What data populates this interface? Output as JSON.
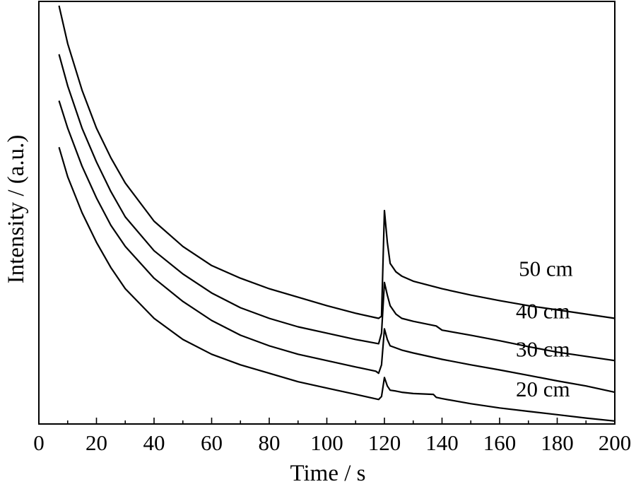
{
  "chart_data": {
    "type": "line",
    "xlabel": "Time / s",
    "ylabel": "Intensity / (a.u.)",
    "xlim": [
      0,
      200
    ],
    "ylim": [
      0,
      1
    ],
    "x_ticks": [
      0,
      20,
      40,
      60,
      80,
      100,
      120,
      140,
      160,
      180,
      200
    ],
    "y_ticks_shown": false,
    "grid": false,
    "series": [
      {
        "name": "50 cm",
        "points": [
          [
            7,
            0.99
          ],
          [
            10,
            0.9
          ],
          [
            15,
            0.79
          ],
          [
            20,
            0.7
          ],
          [
            25,
            0.63
          ],
          [
            30,
            0.57
          ],
          [
            40,
            0.48
          ],
          [
            50,
            0.42
          ],
          [
            60,
            0.375
          ],
          [
            70,
            0.345
          ],
          [
            80,
            0.32
          ],
          [
            90,
            0.3
          ],
          [
            100,
            0.28
          ],
          [
            110,
            0.262
          ],
          [
            118,
            0.25
          ],
          [
            119,
            0.255
          ],
          [
            120,
            0.505
          ],
          [
            121,
            0.43
          ],
          [
            122,
            0.38
          ],
          [
            124,
            0.36
          ],
          [
            126,
            0.35
          ],
          [
            130,
            0.338
          ],
          [
            140,
            0.32
          ],
          [
            150,
            0.305
          ],
          [
            160,
            0.292
          ],
          [
            170,
            0.28
          ],
          [
            180,
            0.27
          ],
          [
            190,
            0.26
          ],
          [
            200,
            0.25
          ]
        ]
      },
      {
        "name": "40 cm",
        "points": [
          [
            7,
            0.875
          ],
          [
            10,
            0.8
          ],
          [
            15,
            0.7
          ],
          [
            20,
            0.62
          ],
          [
            25,
            0.55
          ],
          [
            30,
            0.49
          ],
          [
            40,
            0.41
          ],
          [
            50,
            0.355
          ],
          [
            60,
            0.31
          ],
          [
            70,
            0.275
          ],
          [
            80,
            0.25
          ],
          [
            90,
            0.23
          ],
          [
            100,
            0.215
          ],
          [
            110,
            0.2
          ],
          [
            118,
            0.19
          ],
          [
            119,
            0.215
          ],
          [
            120,
            0.335
          ],
          [
            121,
            0.305
          ],
          [
            122,
            0.28
          ],
          [
            124,
            0.26
          ],
          [
            126,
            0.25
          ],
          [
            130,
            0.243
          ],
          [
            138,
            0.232
          ],
          [
            140,
            0.222
          ],
          [
            150,
            0.21
          ],
          [
            160,
            0.197
          ],
          [
            170,
            0.183
          ],
          [
            180,
            0.17
          ],
          [
            190,
            0.16
          ],
          [
            200,
            0.15
          ]
        ]
      },
      {
        "name": "30 cm",
        "points": [
          [
            7,
            0.765
          ],
          [
            10,
            0.7
          ],
          [
            15,
            0.61
          ],
          [
            20,
            0.535
          ],
          [
            25,
            0.47
          ],
          [
            30,
            0.42
          ],
          [
            40,
            0.345
          ],
          [
            50,
            0.29
          ],
          [
            60,
            0.245
          ],
          [
            70,
            0.21
          ],
          [
            80,
            0.185
          ],
          [
            90,
            0.165
          ],
          [
            100,
            0.15
          ],
          [
            110,
            0.135
          ],
          [
            117,
            0.125
          ],
          [
            118,
            0.12
          ],
          [
            119,
            0.14
          ],
          [
            120,
            0.225
          ],
          [
            121,
            0.2
          ],
          [
            122,
            0.185
          ],
          [
            124,
            0.18
          ],
          [
            126,
            0.175
          ],
          [
            130,
            0.168
          ],
          [
            140,
            0.153
          ],
          [
            150,
            0.14
          ],
          [
            160,
            0.128
          ],
          [
            170,
            0.115
          ],
          [
            180,
            0.102
          ],
          [
            190,
            0.09
          ],
          [
            200,
            0.075
          ]
        ]
      },
      {
        "name": "20 cm",
        "points": [
          [
            7,
            0.655
          ],
          [
            10,
            0.585
          ],
          [
            15,
            0.5
          ],
          [
            20,
            0.43
          ],
          [
            25,
            0.37
          ],
          [
            30,
            0.32
          ],
          [
            40,
            0.25
          ],
          [
            50,
            0.2
          ],
          [
            60,
            0.165
          ],
          [
            70,
            0.14
          ],
          [
            80,
            0.12
          ],
          [
            90,
            0.1
          ],
          [
            100,
            0.085
          ],
          [
            110,
            0.07
          ],
          [
            118,
            0.058
          ],
          [
            119,
            0.065
          ],
          [
            120,
            0.11
          ],
          [
            121,
            0.09
          ],
          [
            122,
            0.08
          ],
          [
            124,
            0.078
          ],
          [
            126,
            0.075
          ],
          [
            130,
            0.072
          ],
          [
            137,
            0.07
          ],
          [
            138,
            0.063
          ],
          [
            140,
            0.06
          ],
          [
            150,
            0.048
          ],
          [
            160,
            0.038
          ],
          [
            170,
            0.03
          ],
          [
            180,
            0.022
          ],
          [
            190,
            0.014
          ],
          [
            200,
            0.007
          ]
        ]
      }
    ],
    "annotations": [
      "50 cm",
      "40 cm",
      "30 cm",
      "20 cm"
    ]
  }
}
